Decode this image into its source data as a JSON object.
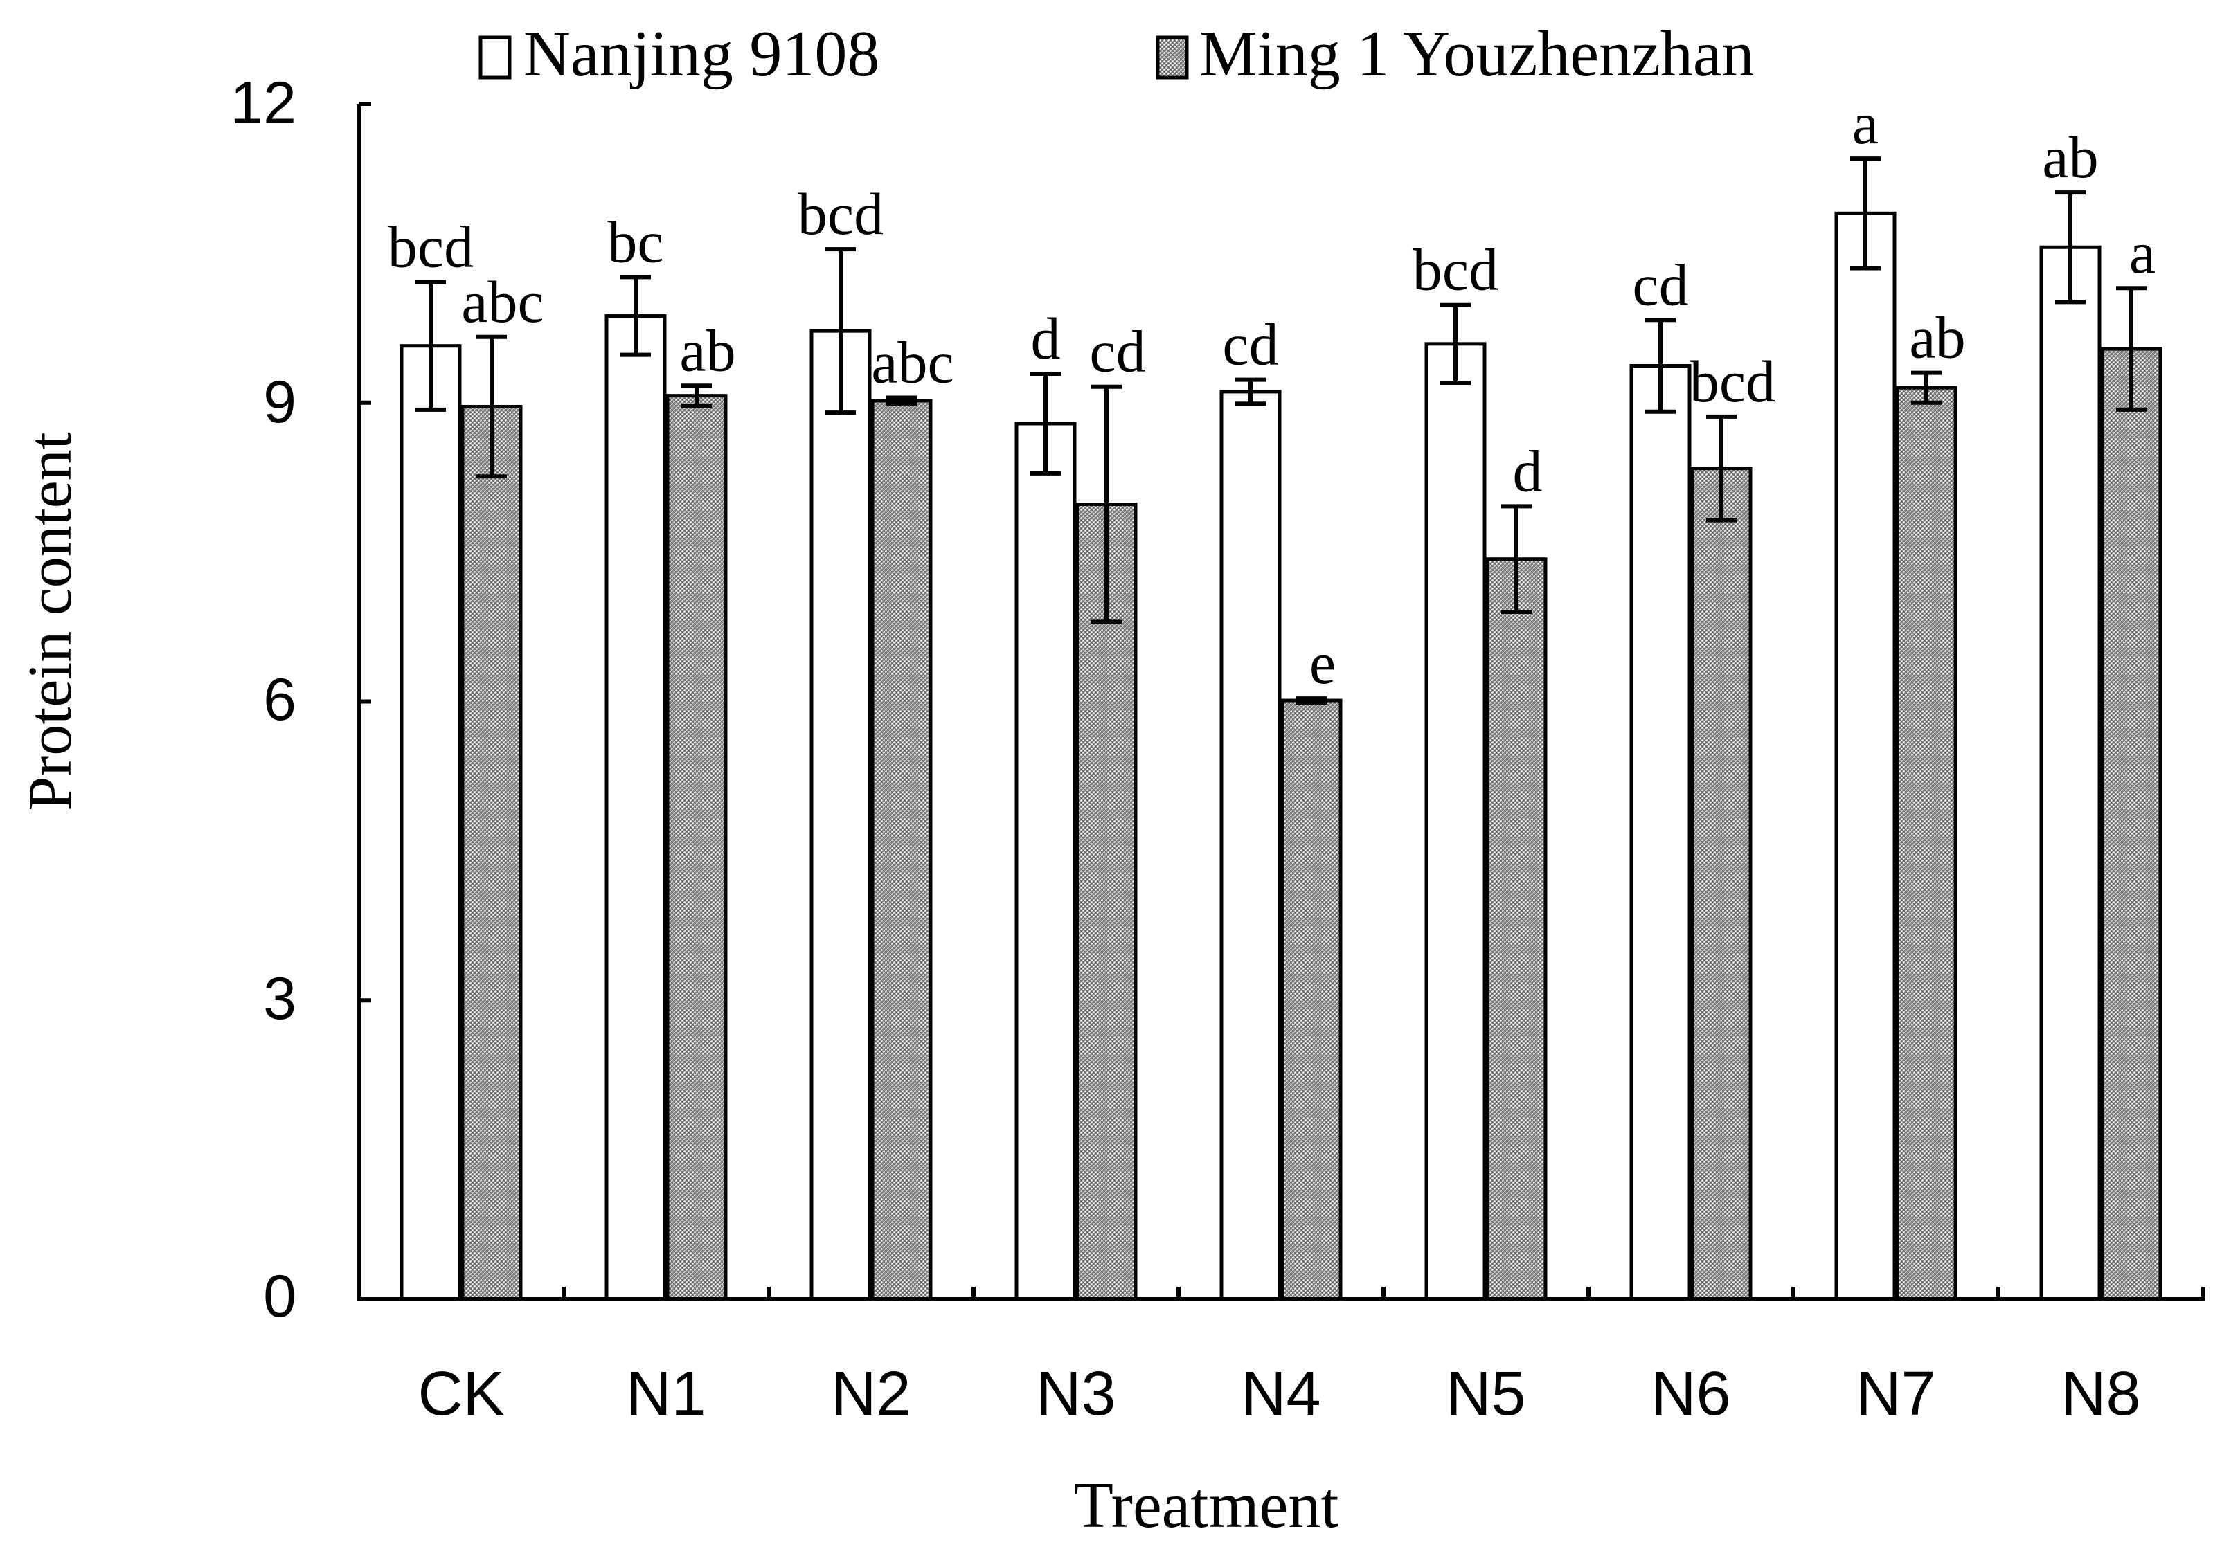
{
  "chart_data": {
    "type": "bar",
    "title": "",
    "xlabel": "Treatment",
    "ylabel": "Protein content",
    "ylim": [
      0,
      12
    ],
    "yticks": [
      "0",
      "3",
      "6",
      "9",
      "12"
    ],
    "categories": [
      "CK",
      "N1",
      "N2",
      "N3",
      "N4",
      "N5",
      "N6",
      "N7",
      "N8"
    ],
    "legend_position": "top",
    "series": [
      {
        "name": "Nanjing 9108",
        "fill": "white",
        "values": [
          9.57,
          9.87,
          9.72,
          8.79,
          9.11,
          9.59,
          9.37,
          10.9,
          10.56
        ],
        "errors": [
          0.64,
          0.39,
          0.82,
          0.5,
          0.12,
          0.39,
          0.46,
          0.55,
          0.55
        ],
        "labels": [
          "bcd",
          "bc",
          "bcd",
          "d",
          "cd",
          "bcd",
          "cd",
          "a",
          "ab"
        ]
      },
      {
        "name": "Ming 1 Youzhenzhan",
        "fill": "hatched",
        "values": [
          8.96,
          9.07,
          9.02,
          7.98,
          6.01,
          7.43,
          8.34,
          9.15,
          9.54
        ],
        "errors": [
          0.7,
          0.1,
          0.03,
          1.18,
          0.02,
          0.53,
          0.52,
          0.15,
          0.61
        ],
        "labels": [
          "abc",
          "ab",
          "abc",
          "cd",
          "e",
          "d",
          "bcd",
          "ab",
          "a"
        ]
      }
    ]
  }
}
